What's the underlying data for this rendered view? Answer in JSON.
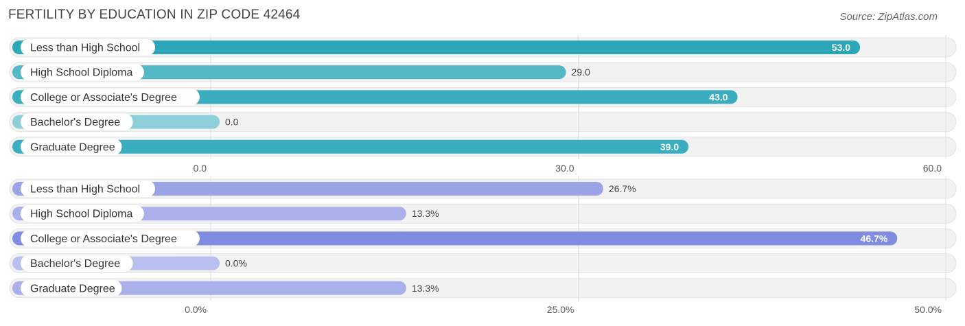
{
  "title": "FERTILITY BY EDUCATION IN ZIP CODE 42464",
  "source": "Source: ZipAtlas.com",
  "colors": {
    "teal": [
      "#2ba7b8",
      "#55b8c6",
      "#3aaebe",
      "#8ccfd8",
      "#3aaebe"
    ],
    "purple": [
      "#9aa3e6",
      "#a9b0ea",
      "#7f8ce0",
      "#b9bfee",
      "#a9b0ea"
    ]
  },
  "chart_data": [
    {
      "type": "bar",
      "orientation": "horizontal",
      "categories": [
        "Less than High School",
        "High School Diploma",
        "College or Associate's Degree",
        "Bachelor's Degree",
        "Graduate Degree"
      ],
      "values": [
        53.0,
        29.0,
        43.0,
        0.0,
        39.0
      ],
      "value_labels": [
        "53.0",
        "29.0",
        "43.0",
        "0.0",
        "39.0"
      ],
      "xlim": [
        0,
        60
      ],
      "ticks": [
        0,
        30,
        60
      ],
      "tick_labels": [
        "0.0",
        "30.0",
        "60.0"
      ],
      "grid": true
    },
    {
      "type": "bar",
      "orientation": "horizontal",
      "categories": [
        "Less than High School",
        "High School Diploma",
        "College or Associate's Degree",
        "Bachelor's Degree",
        "Graduate Degree"
      ],
      "values": [
        26.7,
        13.3,
        46.7,
        0.0,
        13.3
      ],
      "value_labels": [
        "26.7%",
        "13.3%",
        "46.7%",
        "0.0%",
        "13.3%"
      ],
      "xlim": [
        0,
        50
      ],
      "ticks": [
        0,
        25,
        50
      ],
      "tick_labels": [
        "0.0%",
        "25.0%",
        "50.0%"
      ],
      "grid": true
    }
  ]
}
